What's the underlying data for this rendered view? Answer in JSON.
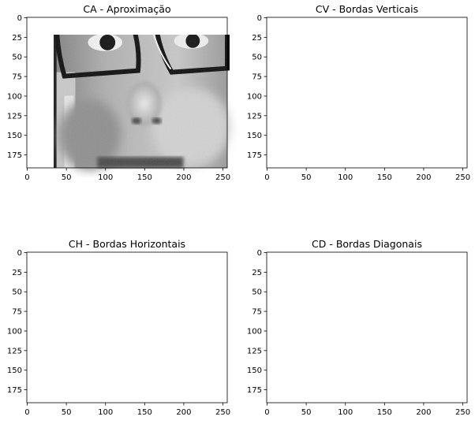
{
  "figure": {
    "panels": [
      {
        "id": "ca",
        "title": "CA - Aproximação",
        "kind": "approximation",
        "x_ticks": [
          "0",
          "50",
          "100",
          "150",
          "200",
          "250"
        ],
        "y_ticks": [
          "0",
          "25",
          "50",
          "75",
          "100",
          "125",
          "150",
          "175"
        ]
      },
      {
        "id": "cv",
        "title": "CV - Bordas Verticais",
        "kind": "vertical-edges",
        "x_ticks": [
          "0",
          "50",
          "100",
          "150",
          "200",
          "250"
        ],
        "y_ticks": [
          "0",
          "25",
          "50",
          "75",
          "100",
          "125",
          "150",
          "175"
        ]
      },
      {
        "id": "ch",
        "title": "CH - Bordas Horizontais",
        "kind": "horizontal-edges",
        "x_ticks": [
          "0",
          "50",
          "100",
          "150",
          "200",
          "250"
        ],
        "y_ticks": [
          "0",
          "25",
          "50",
          "75",
          "100",
          "125",
          "150",
          "175"
        ]
      },
      {
        "id": "cd",
        "title": "CD - Bordas Diagonais",
        "kind": "diagonal-edges",
        "x_ticks": [
          "0",
          "50",
          "100",
          "150",
          "200",
          "250"
        ],
        "y_ticks": [
          "0",
          "25",
          "50",
          "75",
          "100",
          "125",
          "150",
          "175"
        ]
      }
    ]
  }
}
